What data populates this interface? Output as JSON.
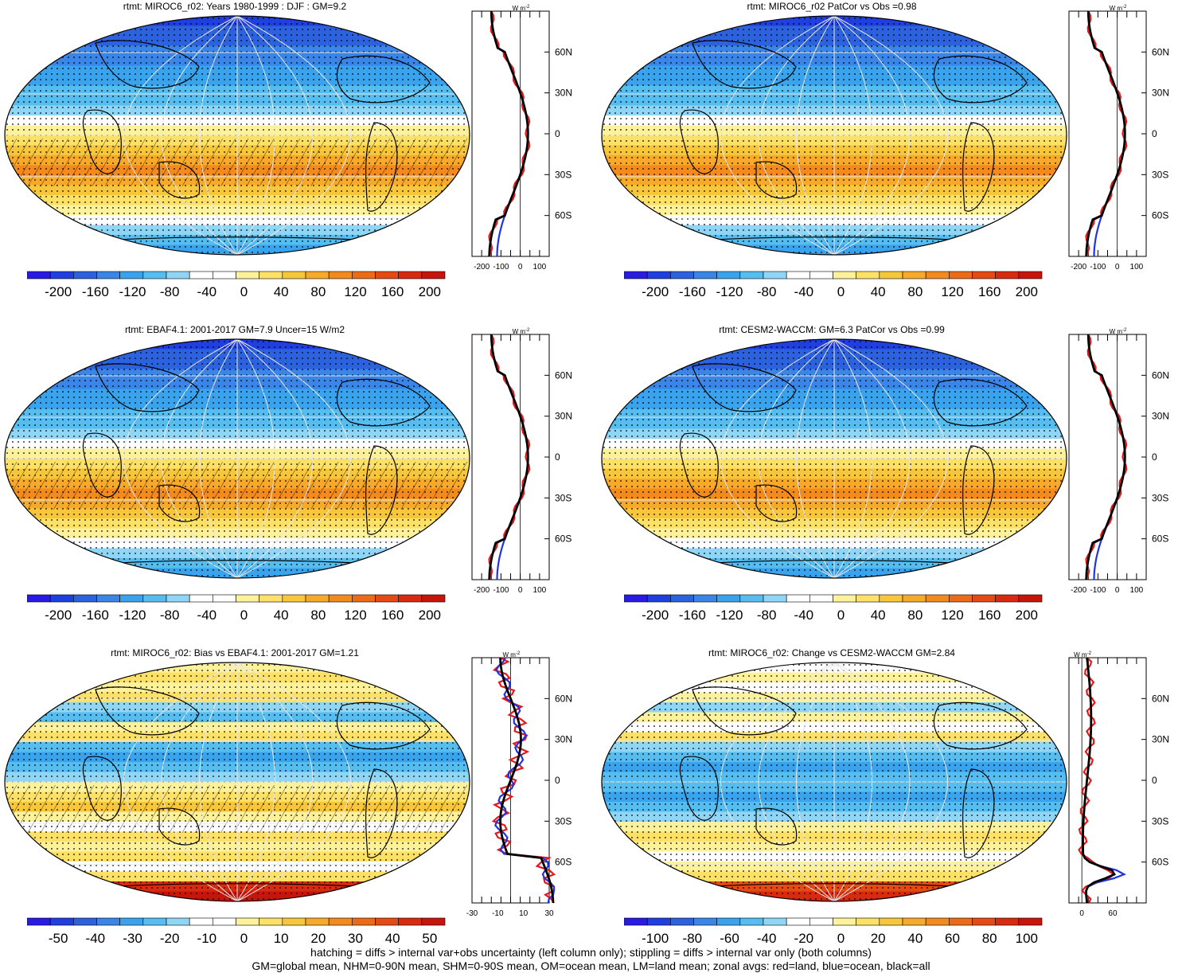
{
  "panels": [
    {
      "title": "rtmt: MIROC6_r02: Years 1980-1999 : DJF : GM=9.2",
      "kind": "abs",
      "hatch": true,
      "cbar_labels": [
        "-200",
        "-160",
        "-120",
        "-80",
        "-40",
        "0",
        "40",
        "80",
        "120",
        "160",
        "200"
      ],
      "zonal_ticks": [
        "-200",
        "-100",
        "0",
        "100"
      ],
      "zonal_xlim": [
        -250,
        150
      ]
    },
    {
      "title": "rtmt: MIROC6_r02 PatCor vs Obs =0.98",
      "kind": "abs",
      "hatch": false,
      "cbar_labels": [
        "-200",
        "-160",
        "-120",
        "-80",
        "-40",
        "0",
        "40",
        "80",
        "120",
        "160",
        "200"
      ],
      "zonal_ticks": [
        "-200",
        "-100",
        "0",
        "100"
      ],
      "zonal_xlim": [
        -250,
        150
      ]
    },
    {
      "title": "rtmt: EBAF4.1: 2001-2017 GM=7.9 Uncer=15 W/m2",
      "kind": "abs",
      "hatch": true,
      "cbar_labels": [
        "-200",
        "-160",
        "-120",
        "-80",
        "-40",
        "0",
        "40",
        "80",
        "120",
        "160",
        "200"
      ],
      "zonal_ticks": [
        "-200",
        "-100",
        "0",
        "100"
      ],
      "zonal_xlim": [
        -250,
        150
      ]
    },
    {
      "title": "rtmt: CESM2-WACCM: GM=6.3 PatCor vs Obs =0.99",
      "kind": "abs",
      "hatch": false,
      "cbar_labels": [
        "-200",
        "-160",
        "-120",
        "-80",
        "-40",
        "0",
        "40",
        "80",
        "120",
        "160",
        "200"
      ],
      "zonal_ticks": [
        "-200",
        "-100",
        "0",
        "100"
      ],
      "zonal_xlim": [
        -250,
        150
      ]
    },
    {
      "title": "rtmt: MIROC6_r02: Bias vs EBAF4.1: 2001-2017 GM=1.21",
      "kind": "bias",
      "hatch": true,
      "cbar_labels": [
        "-50",
        "-40",
        "-30",
        "-20",
        "-10",
        "0",
        "10",
        "20",
        "30",
        "40",
        "50"
      ],
      "zonal_ticks": [
        "-30",
        "-10",
        "10",
        "30"
      ],
      "zonal_xlim": [
        -30,
        30
      ]
    },
    {
      "title": "rtmt: MIROC6_r02: Change vs CESM2-WACCM GM=2.84",
      "kind": "change",
      "hatch": false,
      "cbar_labels": [
        "-100",
        "-80",
        "-60",
        "-40",
        "-20",
        "0",
        "20",
        "40",
        "60",
        "80",
        "100"
      ],
      "zonal_ticks": [
        "0",
        "60"
      ],
      "zonal_xlim": [
        -25,
        125
      ]
    }
  ],
  "lat_labels": [
    "60N",
    "30N",
    "0",
    "30S",
    "60S"
  ],
  "zonal_unit": "W m",
  "zonal_unit_sup": "-2",
  "colors": {
    "palette": [
      "#2a1ae6",
      "#1f3fe0",
      "#2d62de",
      "#3a86e8",
      "#3aa3ee",
      "#55bdf0",
      "#8fd6f6",
      "#ffffff",
      "#ffffff",
      "#fdf29a",
      "#fde066",
      "#f8c63a",
      "#f7a92a",
      "#f28a1e",
      "#ec6b16",
      "#e44a12",
      "#d82a0e",
      "#c8150b"
    ],
    "land": "#e31a1c",
    "ocean": "#1f33e0",
    "all": "#000000"
  },
  "footer": [
    "hatching = diffs > internal var+obs uncertainty (left column only); stippling = diffs > internal var only (both columns)",
    "GM=global mean, NHM=0-90N mean, SHM=0-90S mean, OM=ocean mean, LM=land mean; zonal avgs: red=land, blue=ocean, black=all"
  ]
}
